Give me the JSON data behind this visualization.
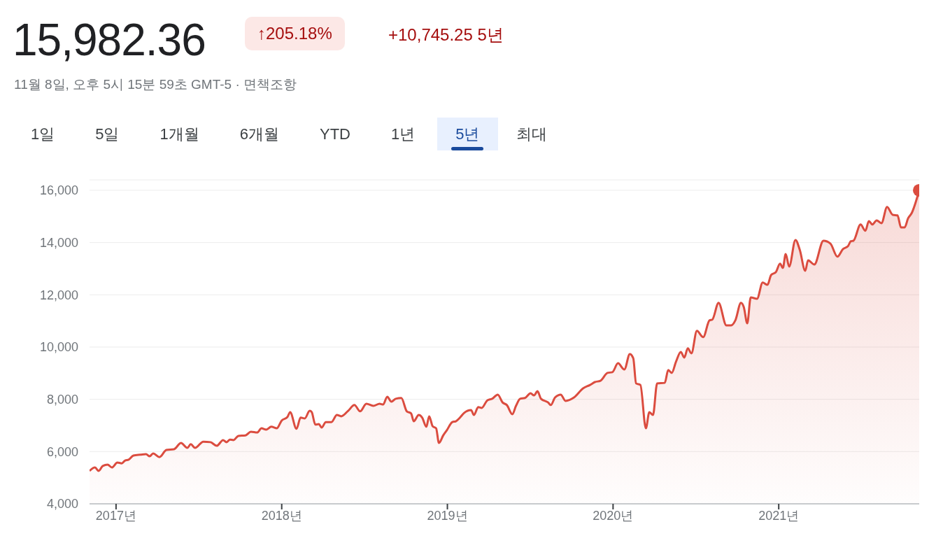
{
  "chart_data": {
    "type": "area",
    "title": "15,982.36",
    "subtitle": "11월 8일, 오후 5시 15분 59초 GMT-5 · 면책조항",
    "annotations": [
      "↑205.18%",
      "+10,745.25 5년",
      "1일",
      "5일",
      "1개월",
      "6개월",
      "YTD",
      "1년",
      "5년",
      "최대"
    ],
    "x": [
      2016.84,
      2016.873,
      2016.895,
      2016.92,
      2016.949,
      2016.975,
      2017.008,
      2017.034,
      2017.055,
      2017.076,
      2017.105,
      2017.148,
      2017.181,
      2017.203,
      2017.224,
      2017.262,
      2017.304,
      2017.35,
      2017.392,
      2017.43,
      2017.451,
      2017.477,
      2017.527,
      2017.57,
      2017.608,
      2017.646,
      2017.667,
      2017.688,
      2017.709,
      2017.738,
      2017.781,
      2017.814,
      2017.852,
      2017.878,
      2017.907,
      2017.937,
      2017.97,
      2018.0,
      2018.034,
      2018.051,
      2018.089,
      2018.114,
      2018.139,
      2018.169,
      2018.181,
      2018.203,
      2018.224,
      2018.241,
      2018.266,
      2018.3,
      2018.333,
      2018.359,
      2018.401,
      2018.439,
      2018.473,
      2018.511,
      2018.553,
      2018.591,
      2018.612,
      2018.637,
      2018.662,
      2018.688,
      2018.722,
      2018.755,
      2018.781,
      2018.797,
      2018.827,
      2018.848,
      2018.873,
      2018.89,
      2018.911,
      2018.932,
      2018.949,
      2018.975,
      2018.996,
      2019.03,
      2019.051,
      2019.076,
      2019.101,
      2019.143,
      2019.16,
      2019.186,
      2019.207,
      2019.241,
      2019.27,
      2019.304,
      2019.333,
      2019.359,
      2019.392,
      2019.414,
      2019.439,
      2019.468,
      2019.502,
      2019.523,
      2019.544,
      2019.565,
      2019.608,
      2019.624,
      2019.65,
      2019.684,
      2019.713,
      2019.764,
      2019.819,
      2019.861,
      2019.89,
      2019.924,
      2019.966,
      2019.996,
      2020.03,
      2020.068,
      2020.101,
      2020.122,
      2020.139,
      2020.165,
      2020.198,
      2020.219,
      2020.241,
      2020.266,
      2020.312,
      2020.333,
      2020.354,
      2020.38,
      2020.409,
      2020.43,
      2020.451,
      2020.473,
      2020.506,
      2020.544,
      2020.582,
      2020.599,
      2020.637,
      2020.684,
      2020.713,
      2020.738,
      2020.772,
      2020.789,
      2020.81,
      2020.831,
      2020.869,
      2020.903,
      2020.932,
      2020.954,
      2020.983,
      2021.008,
      2021.025,
      2021.042,
      2021.063,
      2021.101,
      2021.127,
      2021.16,
      2021.177,
      2021.215,
      2021.27,
      2021.312,
      2021.354,
      2021.388,
      2021.418,
      2021.435,
      2021.451,
      2021.494,
      2021.523,
      2021.544,
      2021.565,
      2021.591,
      2021.62,
      2021.654,
      2021.688,
      2021.717,
      2021.738,
      2021.76,
      2021.781,
      2021.802,
      2021.848
    ],
    "series": [
      {
        "color": "#db4c3f",
        "values": [
          5260,
          5390,
          5260,
          5450,
          5500,
          5390,
          5580,
          5550,
          5660,
          5690,
          5850,
          5880,
          5900,
          5820,
          5930,
          5790,
          6060,
          6090,
          6330,
          6140,
          6280,
          6140,
          6380,
          6360,
          6220,
          6440,
          6360,
          6460,
          6440,
          6600,
          6620,
          6760,
          6730,
          6890,
          6840,
          6950,
          6890,
          7190,
          7320,
          7510,
          6870,
          7300,
          7270,
          7560,
          7510,
          7030,
          7050,
          6920,
          7130,
          7130,
          7400,
          7350,
          7560,
          7780,
          7540,
          7830,
          7750,
          7830,
          7800,
          8100,
          7910,
          8020,
          8050,
          7540,
          7460,
          7160,
          7400,
          7300,
          6950,
          7350,
          6970,
          6890,
          6330,
          6620,
          6810,
          7130,
          7160,
          7300,
          7480,
          7590,
          7400,
          7700,
          7670,
          7960,
          8020,
          8180,
          7880,
          7780,
          7430,
          7750,
          8020,
          8050,
          8230,
          8150,
          8310,
          8020,
          7880,
          7780,
          8070,
          8180,
          7940,
          8070,
          8420,
          8550,
          8660,
          8710,
          9010,
          9040,
          9380,
          9140,
          9730,
          9570,
          8610,
          8550,
          6890,
          7510,
          7400,
          8610,
          8630,
          9120,
          9010,
          9440,
          9810,
          9600,
          9950,
          9760,
          10620,
          10380,
          11020,
          11050,
          11690,
          10830,
          10830,
          11020,
          11690,
          11530,
          10910,
          11900,
          11850,
          12470,
          12380,
          12760,
          12870,
          13190,
          13030,
          13560,
          13080,
          14100,
          13720,
          12920,
          13320,
          13160,
          14070,
          13960,
          13460,
          13750,
          13860,
          14050,
          14070,
          14690,
          14450,
          14820,
          14690,
          14850,
          14740,
          15360,
          15060,
          15040,
          14580,
          14580,
          14930,
          15120,
          16000
        ]
      },
      {
        "type": "scatter",
        "color": "#db4c3f",
        "marker": "circle",
        "x": [
          2021.848
        ],
        "values": [
          16000
        ]
      }
    ],
    "xlim": [
      2016.84,
      2021.848
    ],
    "xticks": [
      {
        "value": 2017,
        "label": "2017년"
      },
      {
        "value": 2018,
        "label": "2018년"
      },
      {
        "value": 2019,
        "label": "2019년"
      },
      {
        "value": 2020,
        "label": "2020년"
      },
      {
        "value": 2021,
        "label": "2021년"
      }
    ],
    "ylim": [
      4000,
      16400
    ],
    "yticks": [
      {
        "value": 4000,
        "label": "4,000"
      },
      {
        "value": 6000,
        "label": "6,000"
      },
      {
        "value": 8000,
        "label": "8,000"
      },
      {
        "value": 10000,
        "label": "10,000"
      },
      {
        "value": 12000,
        "label": "12,000"
      },
      {
        "value": 14000,
        "label": "14,000"
      },
      {
        "value": 16000,
        "label": "16,000"
      }
    ],
    "grid": "y",
    "line_style": "solid"
  }
}
